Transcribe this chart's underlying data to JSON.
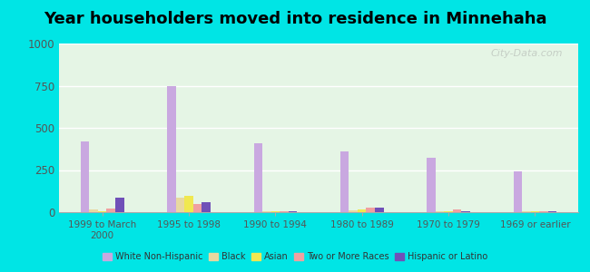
{
  "title": "Year householders moved into residence in Minnehaha",
  "categories": [
    "1999 to March\n2000",
    "1995 to 1998",
    "1990 to 1994",
    "1980 to 1989",
    "1970 to 1979",
    "1969 or earlier"
  ],
  "series": {
    "White Non-Hispanic": [
      420,
      750,
      410,
      360,
      325,
      240
    ],
    "Black": [
      18,
      85,
      5,
      12,
      5,
      4
    ],
    "Asian": [
      8,
      95,
      4,
      18,
      4,
      4
    ],
    "Two or More Races": [
      22,
      50,
      4,
      28,
      18,
      4
    ],
    "Hispanic or Latino": [
      88,
      58,
      4,
      28,
      4,
      4
    ]
  },
  "colors": {
    "White Non-Hispanic": "#c9a8e0",
    "Black": "#e8d8a0",
    "Asian": "#f0e850",
    "Two or More Races": "#f0a0a0",
    "Hispanic or Latino": "#7050b8"
  },
  "ylim": [
    0,
    1000
  ],
  "yticks": [
    0,
    250,
    500,
    750,
    1000
  ],
  "background_color": "#00e5e5",
  "plot_bg_color": "#e5f5e5",
  "bar_width": 0.1,
  "title_fontsize": 13
}
